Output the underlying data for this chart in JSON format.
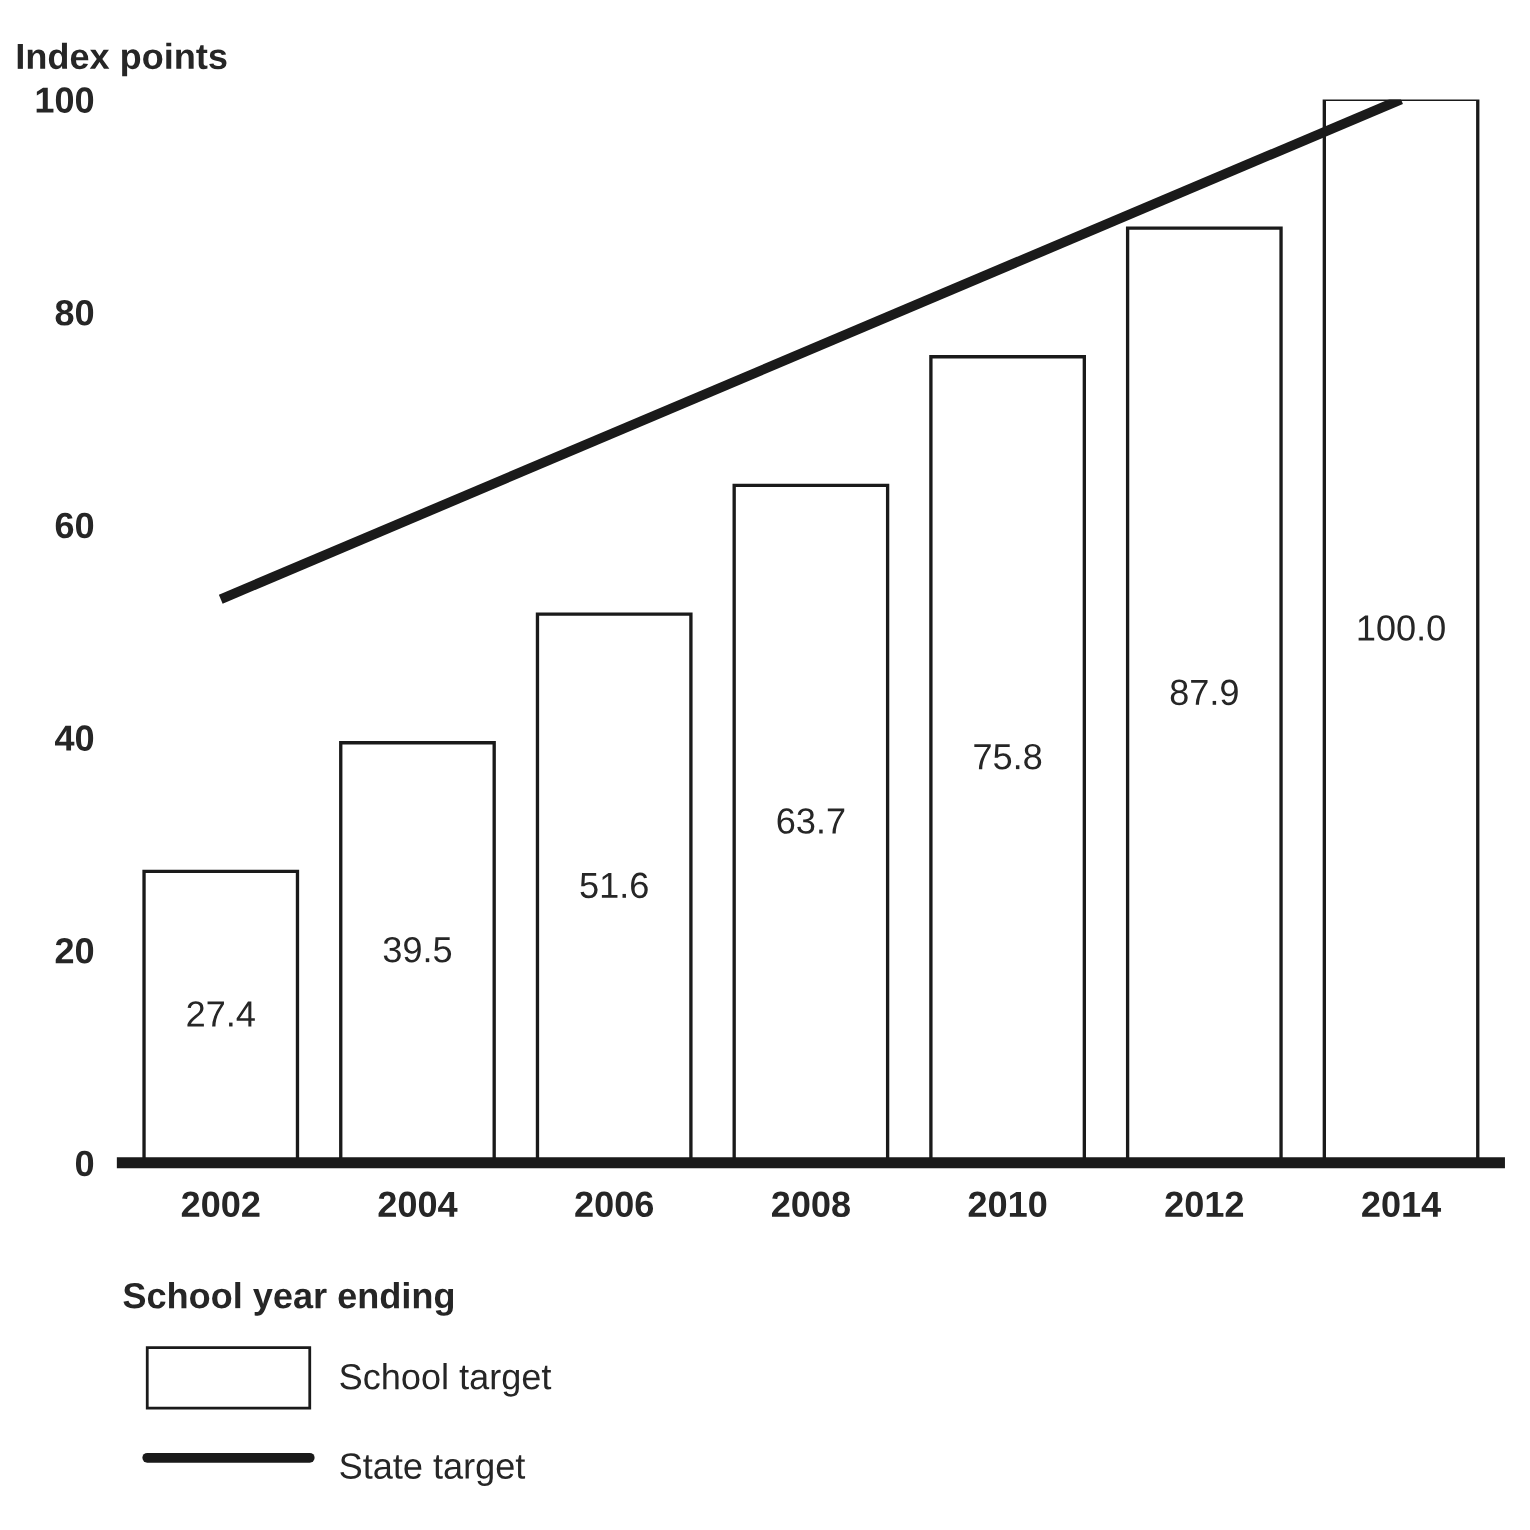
{
  "chart_data": {
    "type": "bar",
    "ylabel": "Index points",
    "xlabel": "School year ending",
    "categories": [
      "2002",
      "2004",
      "2006",
      "2008",
      "2010",
      "2012",
      "2014"
    ],
    "ylim": [
      0,
      100
    ],
    "yticks": [
      0,
      20,
      40,
      60,
      80,
      100
    ],
    "grid": false,
    "legend": "bottom",
    "series": [
      {
        "name": "School target",
        "color": "#ffffff",
        "values": [
          27.4,
          39.5,
          51.6,
          63.7,
          75.8,
          87.9,
          100.0
        ],
        "value_labels": [
          "27.4",
          "39.5",
          "51.6",
          "63.7",
          "75.8",
          "87.9",
          "100.0"
        ]
      },
      {
        "name": "State target",
        "type": "line",
        "color": "#1a1a1a",
        "values": [
          53,
          null,
          null,
          null,
          null,
          null,
          100
        ]
      }
    ]
  }
}
